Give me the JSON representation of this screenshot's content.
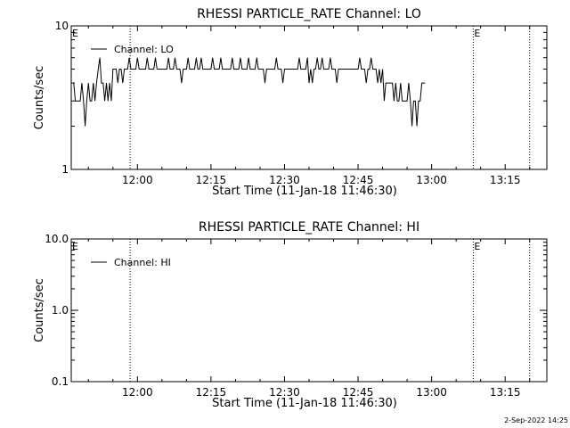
{
  "footer": {
    "timestamp": "2-Sep-2022 14:25"
  },
  "chart_data": [
    {
      "type": "line",
      "title": "RHESSI PARTICLE_RATE Channel: LO",
      "xlabel": "Start Time (11-Jan-18 11:46:30)",
      "ylabel": "Counts/sec",
      "yscale": "log",
      "ylim": [
        1,
        10
      ],
      "yticks": [
        1,
        10
      ],
      "ytick_labels": [
        "1",
        "10"
      ],
      "xlim": [
        "11:46:30",
        "13:23:30"
      ],
      "xticks": [
        "12:00",
        "12:15",
        "12:30",
        "12:45",
        "13:00",
        "13:15"
      ],
      "event_markers": [
        {
          "time": "11:58:30",
          "label": ""
        },
        {
          "time": "13:08:30",
          "label": "E"
        },
        {
          "time": "13:20:00",
          "label": ""
        }
      ],
      "left_marker_label": "E",
      "grid": false,
      "legend": {
        "entries": [
          "Channel: LO"
        ],
        "placement": "top-left"
      },
      "series": [
        {
          "name": "Channel: LO",
          "x_start": "11:47:00",
          "x_step_seconds": 20,
          "values": [
            4,
            3,
            3,
            3,
            3,
            4,
            3,
            2,
            3,
            4,
            3,
            3,
            4,
            3,
            4,
            5,
            6,
            4,
            4,
            3,
            4,
            3,
            4,
            3,
            5,
            5,
            5,
            4,
            5,
            5,
            4,
            5,
            5,
            5,
            6,
            5,
            5,
            5,
            5,
            6,
            5,
            5,
            5,
            5,
            5,
            6,
            5,
            5,
            5,
            5,
            6,
            5,
            5,
            5,
            5,
            5,
            5,
            5,
            6,
            5,
            5,
            5,
            6,
            5,
            5,
            5,
            4,
            5,
            5,
            5,
            6,
            5,
            5,
            5,
            5,
            6,
            5,
            5,
            6,
            5,
            5,
            5,
            5,
            5,
            5,
            6,
            5,
            5,
            5,
            5,
            6,
            5,
            5,
            5,
            5,
            5,
            5,
            6,
            5,
            5,
            5,
            5,
            6,
            5,
            5,
            5,
            5,
            6,
            5,
            5,
            5,
            5,
            6,
            5,
            5,
            5,
            5,
            4,
            5,
            5,
            5,
            5,
            5,
            5,
            6,
            5,
            5,
            5,
            4,
            5,
            5,
            5,
            5,
            5,
            5,
            5,
            5,
            5,
            6,
            5,
            5,
            5,
            5,
            6,
            4,
            5,
            4,
            5,
            5,
            6,
            5,
            5,
            6,
            5,
            5,
            5,
            5,
            6,
            5,
            5,
            5,
            4,
            5,
            5,
            5,
            5,
            5,
            5,
            5,
            5,
            5,
            5,
            5,
            5,
            5,
            6,
            5,
            5,
            5,
            4,
            5,
            5,
            6,
            5,
            5,
            5,
            4,
            5,
            4,
            5,
            3,
            4,
            4,
            4,
            4,
            4,
            3,
            4,
            3,
            3,
            4,
            3,
            3,
            3,
            3,
            4,
            3,
            2,
            3,
            3,
            2,
            3,
            3,
            4,
            4,
            4
          ]
        }
      ]
    },
    {
      "type": "line",
      "title": "RHESSI PARTICLE_RATE Channel: HI",
      "xlabel": "Start Time (11-Jan-18 11:46:30)",
      "ylabel": "Counts/sec",
      "yscale": "log",
      "ylim": [
        0.1,
        10
      ],
      "yticks": [
        0.1,
        1,
        10
      ],
      "ytick_labels": [
        "0.1",
        "1.0",
        "10.0"
      ],
      "xlim": [
        "11:46:30",
        "13:23:30"
      ],
      "xticks": [
        "12:00",
        "12:15",
        "12:30",
        "12:45",
        "13:00",
        "13:15"
      ],
      "event_markers": [
        {
          "time": "11:58:30",
          "label": ""
        },
        {
          "time": "13:08:30",
          "label": "E"
        },
        {
          "time": "13:20:00",
          "label": ""
        }
      ],
      "left_marker_label": "E",
      "grid": false,
      "legend": {
        "entries": [
          "Channel: HI"
        ],
        "placement": "top-left"
      },
      "series": [
        {
          "name": "Channel: HI",
          "values": []
        }
      ]
    }
  ]
}
